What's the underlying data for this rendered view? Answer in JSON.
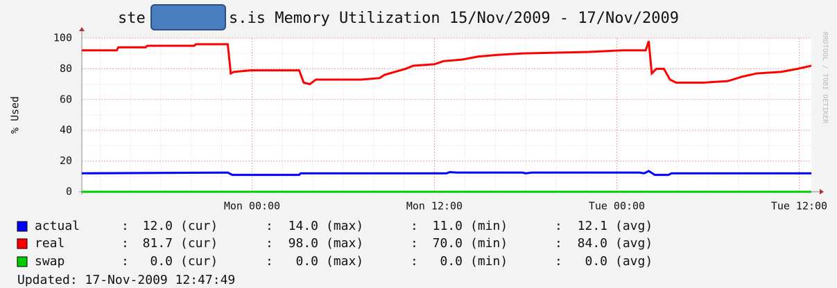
{
  "chart_data": {
    "type": "line",
    "title_start": "ste",
    "title_end": "s.is Memory Utilization 15/Nov/2009 - 17/Nov/2009",
    "ylabel": "% Used",
    "side_note": "RRDTOOL / TOBI OETIKER",
    "updated": "Updated: 17-Nov-2009 12:47:49",
    "xlim": [
      -11.2,
      36.8
    ],
    "xticks": [
      {
        "value": 0,
        "label": "Mon 00:00"
      },
      {
        "value": 12,
        "label": "Mon 12:00"
      },
      {
        "value": 24,
        "label": "Tue 00:00"
      },
      {
        "value": 36,
        "label": "Tue 12:00"
      }
    ],
    "xminor": [
      -10,
      -8,
      -6,
      -4,
      -2,
      2,
      4,
      6,
      8,
      10,
      14,
      16,
      18,
      20,
      22,
      26,
      28,
      30,
      32,
      34
    ],
    "ylim": [
      0,
      100
    ],
    "yticks": [
      0,
      20,
      40,
      60,
      80,
      100
    ],
    "yminor": [
      10,
      30,
      50,
      70,
      90
    ],
    "grid": true,
    "stat_names": [
      "(cur)",
      "(max)",
      "(min)",
      "(avg)"
    ],
    "series": [
      {
        "name": "actual",
        "color": "#0000ff",
        "x": [
          -11.2,
          -1.6,
          -1.3,
          3.1,
          3.2,
          12.8,
          13.0,
          13.5,
          17.8,
          18.0,
          18.4,
          25.5,
          25.8,
          26.1,
          26.5,
          27.4,
          27.6,
          36.8
        ],
        "values": [
          12,
          12.5,
          11,
          11,
          12,
          12,
          12.8,
          12.5,
          12.5,
          12,
          12.5,
          12.5,
          12,
          13.5,
          11,
          11,
          12,
          12
        ],
        "stats": [
          12.0,
          14.0,
          11.0,
          12.1
        ],
        "stats_labels": [
          "12.0",
          "14.0",
          "11.0",
          "12.1"
        ]
      },
      {
        "name": "real",
        "color": "#ff0000",
        "x": [
          -11.2,
          -8.9,
          -8.8,
          -7.0,
          -6.9,
          -3.8,
          -3.7,
          -1.6,
          -1.4,
          -1.2,
          -0.1,
          3.1,
          3.4,
          3.8,
          4.2,
          7.2,
          8.4,
          8.7,
          9.4,
          10.1,
          10.6,
          12.0,
          12.6,
          13.8,
          14.9,
          16.1,
          17.7,
          19.9,
          22.2,
          24.3,
          25.9,
          26.1,
          26.3,
          26.6,
          27.1,
          27.5,
          27.9,
          29.7,
          31.3,
          32.3,
          33.2,
          34.8,
          35.9,
          36.8
        ],
        "values": [
          92,
          92,
          94,
          94,
          95,
          95,
          96,
          96,
          77,
          78,
          79,
          79,
          71,
          70,
          73,
          73,
          74,
          76,
          78,
          80,
          82,
          83,
          85,
          86,
          88,
          89,
          90,
          90.5,
          91,
          92,
          92,
          98,
          77,
          80,
          80,
          73,
          71,
          71,
          72,
          75,
          77,
          78,
          80,
          82
        ],
        "stats": [
          81.7,
          98.0,
          70.0,
          84.0
        ],
        "stats_labels": [
          "81.7",
          "98.0",
          "70.0",
          "84.0"
        ]
      },
      {
        "name": "swap",
        "color": "#00cc00",
        "x": [
          -11.2,
          36.8
        ],
        "values": [
          0,
          0
        ],
        "stats": [
          0.0,
          0.0,
          0.0,
          0.0
        ],
        "stats_labels": [
          "0.0",
          "0.0",
          "0.0",
          "0.0"
        ]
      }
    ]
  }
}
